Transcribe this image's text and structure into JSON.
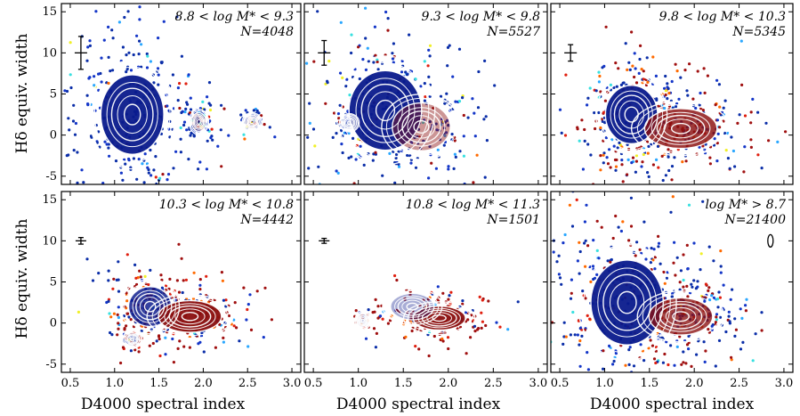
{
  "figure": {
    "ylabel": "Hδ equiv. width",
    "xlabel": "D4000 spectral index"
  },
  "chart_data": [
    {
      "type": "scatter",
      "panel": "top-left",
      "mass_bin": "8.8 < log M* < 9.3",
      "count_label": "N=4048",
      "annotation_line1": "8.8 < log M* < 9.3",
      "annotation_line2": "N=4048",
      "xlim": [
        0.4,
        3.1
      ],
      "ylim": [
        -6,
        16
      ],
      "xticks": [],
      "yticks": [
        "15",
        "10",
        "5",
        "0",
        "-5"
      ],
      "error_bar": {
        "x": 0.62,
        "y": 10.0,
        "xerr": 0.04,
        "yerr": 2.0
      },
      "density_peaks": [
        {
          "x": 1.2,
          "y": 2.5,
          "sx": 0.22,
          "sy": 3.0,
          "w": 1.0
        },
        {
          "x": 1.95,
          "y": 1.6,
          "sx": 0.05,
          "sy": 0.7,
          "w": 0.25
        },
        {
          "x": 2.55,
          "y": 1.6,
          "sx": 0.05,
          "sy": 0.5,
          "w": 0.15
        }
      ],
      "red_fraction": 0.05,
      "contour_levels": [
        0.05,
        0.1,
        0.2,
        0.35,
        0.5,
        0.7,
        0.9
      ],
      "n_points": 420,
      "colorbar_note": "points coloured blue→red"
    },
    {
      "type": "scatter",
      "panel": "top-middle",
      "mass_bin": "9.3 < log M* < 9.8",
      "count_label": "N=5527",
      "annotation_line1": "9.3 < log M* < 9.8",
      "annotation_line2": "N=5527",
      "xlim": [
        0.4,
        3.1
      ],
      "ylim": [
        -6,
        16
      ],
      "xticks": [],
      "yticks": [],
      "error_bar": {
        "x": 0.62,
        "y": 10.0,
        "xerr": 0.04,
        "yerr": 1.5
      },
      "density_peaks": [
        {
          "x": 1.3,
          "y": 3.0,
          "sx": 0.25,
          "sy": 3.0,
          "w": 1.0
        },
        {
          "x": 0.9,
          "y": 1.5,
          "sx": 0.05,
          "sy": 0.5,
          "w": 0.12
        },
        {
          "x": 1.7,
          "y": 1.0,
          "sx": 0.2,
          "sy": 1.8,
          "w": 0.4
        }
      ],
      "red_fraction": 0.15,
      "contour_levels": [
        0.05,
        0.1,
        0.2,
        0.35,
        0.5,
        0.7,
        0.9
      ],
      "n_points": 420,
      "colorbar_note": ""
    },
    {
      "type": "scatter",
      "panel": "top-right",
      "mass_bin": "9.8 < log M* < 10.3",
      "count_label": "N=5345",
      "annotation_line1": "9.8 < log M* < 10.3",
      "annotation_line2": "N=5345",
      "xlim": [
        0.4,
        3.1
      ],
      "ylim": [
        -6,
        16
      ],
      "xticks": [],
      "yticks": [],
      "error_bar": {
        "x": 0.62,
        "y": 10.0,
        "xerr": 0.04,
        "yerr": 1.0
      },
      "density_peaks": [
        {
          "x": 1.3,
          "y": 2.5,
          "sx": 0.18,
          "sy": 2.2,
          "w": 1.0
        },
        {
          "x": 1.85,
          "y": 0.8,
          "sx": 0.25,
          "sy": 1.5,
          "w": 0.85
        }
      ],
      "red_fraction": 0.45,
      "contour_levels": [
        0.05,
        0.1,
        0.2,
        0.35,
        0.5,
        0.7,
        0.9
      ],
      "n_points": 440,
      "colorbar_note": ""
    },
    {
      "type": "scatter",
      "panel": "bottom-left",
      "mass_bin": "10.3 < log M* < 10.8",
      "count_label": "N=4442",
      "annotation_line1": "10.3 < log M* < 10.8",
      "annotation_line2": "N=4442",
      "xlim": [
        0.4,
        3.1
      ],
      "ylim": [
        -6,
        16
      ],
      "xticks": [
        "0.5",
        "1.0",
        "1.5",
        "2.0",
        "2.5",
        "3.0"
      ],
      "yticks": [
        "15",
        "10",
        "5",
        "0",
        "-5"
      ],
      "error_bar": {
        "x": 0.62,
        "y": 10.0,
        "xerr": 0.03,
        "yerr": 0.4
      },
      "density_peaks": [
        {
          "x": 1.4,
          "y": 2.0,
          "sx": 0.15,
          "sy": 1.5,
          "w": 0.85
        },
        {
          "x": 1.85,
          "y": 0.8,
          "sx": 0.22,
          "sy": 1.2,
          "w": 1.0
        },
        {
          "x": 1.2,
          "y": -2.0,
          "sx": 0.05,
          "sy": 0.5,
          "w": 0.15
        }
      ],
      "red_fraction": 0.65,
      "contour_levels": [
        0.05,
        0.1,
        0.2,
        0.35,
        0.5,
        0.7,
        0.9
      ],
      "n_points": 360,
      "colorbar_note": ""
    },
    {
      "type": "scatter",
      "panel": "bottom-middle",
      "mass_bin": "10.8 < log M* < 11.3",
      "count_label": "N=1501",
      "annotation_line1": "10.8 < log M* < 11.3",
      "annotation_line2": "N=1501",
      "xlim": [
        0.4,
        3.1
      ],
      "ylim": [
        -6,
        16
      ],
      "xticks": [
        "0.5",
        "1.0",
        "1.5",
        "2.0",
        "2.5",
        "3.0"
      ],
      "yticks": [],
      "error_bar": {
        "x": 0.62,
        "y": 10.0,
        "xerr": 0.03,
        "yerr": 0.3
      },
      "density_peaks": [
        {
          "x": 1.9,
          "y": 0.6,
          "sx": 0.18,
          "sy": 0.9,
          "w": 1.0
        },
        {
          "x": 1.6,
          "y": 2.0,
          "sx": 0.15,
          "sy": 1.0,
          "w": 0.3
        },
        {
          "x": 1.05,
          "y": 0.3,
          "sx": 0.04,
          "sy": 0.5,
          "w": 0.15
        }
      ],
      "red_fraction": 0.85,
      "contour_levels": [
        0.05,
        0.1,
        0.2,
        0.35,
        0.5,
        0.7,
        0.9
      ],
      "n_points": 180,
      "colorbar_note": ""
    },
    {
      "type": "scatter",
      "panel": "bottom-right",
      "mass_bin": "log M* > 8.7",
      "count_label": "N=21400",
      "annotation_line1": "log M* > 8.7",
      "annotation_line2": "N=21400",
      "xlim": [
        0.4,
        3.1
      ],
      "ylim": [
        -6,
        16
      ],
      "xticks": [
        "0.5",
        "1.0",
        "1.5",
        "2.0",
        "2.5",
        "3.0"
      ],
      "yticks": [],
      "error_bar": {
        "x": 2.85,
        "y": 10.0,
        "xerr": 0.02,
        "yerr": 0.6,
        "ellipse": true
      },
      "density_peaks": [
        {
          "x": 1.25,
          "y": 2.5,
          "sx": 0.25,
          "sy": 3.2,
          "w": 1.0
        },
        {
          "x": 1.85,
          "y": 0.8,
          "sx": 0.22,
          "sy": 1.4,
          "w": 0.8
        }
      ],
      "red_fraction": 0.4,
      "contour_levels": [
        0.05,
        0.1,
        0.2,
        0.35,
        0.5,
        0.7,
        0.9
      ],
      "n_points": 520,
      "colorbar_note": ""
    }
  ],
  "colors": {
    "background": "#ffffff",
    "frame": "#000000",
    "contour": "#ffffff",
    "density_blue": "#0a1a8c",
    "density_red": "#8a0f0f",
    "point_palette": [
      "#0b2ea8",
      "#1436c8",
      "#0a1a8c",
      "#2aa7ff",
      "#38e0e0",
      "#f0f028",
      "#ffb000",
      "#ff6a00",
      "#e02010",
      "#a01010"
    ]
  }
}
